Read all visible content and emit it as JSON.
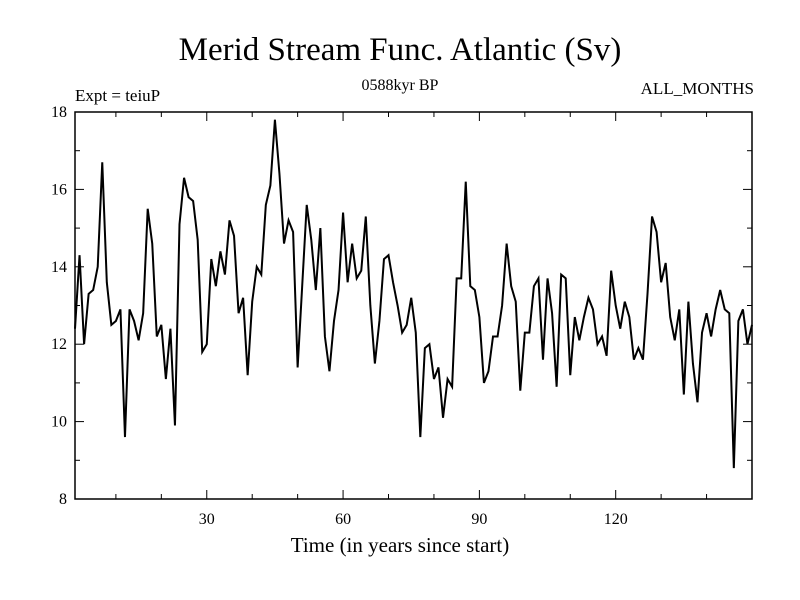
{
  "chart_data": {
    "type": "line",
    "title": "Merid Stream Func. Atlantic (Sv)",
    "subtitle": "0588kyr BP",
    "experiment_label": "Expt = teiuP",
    "period_label": "ALL_MONTHS",
    "xlabel": "Time (in years since start)",
    "ylabel": "",
    "xlim": [
      1,
      150
    ],
    "ylim": [
      8,
      18
    ],
    "xticks": [
      30,
      60,
      90,
      120
    ],
    "yticks": [
      8,
      10,
      12,
      14,
      16,
      18
    ],
    "grid": false,
    "series": [
      {
        "name": "Merid Stream Func. Atlantic",
        "color": "#000000",
        "x": [
          1,
          2,
          3,
          4,
          5,
          6,
          7,
          8,
          9,
          10,
          11,
          12,
          13,
          14,
          15,
          16,
          17,
          18,
          19,
          20,
          21,
          22,
          23,
          24,
          25,
          26,
          27,
          28,
          29,
          30,
          31,
          32,
          33,
          34,
          35,
          36,
          37,
          38,
          39,
          40,
          41,
          42,
          43,
          44,
          45,
          46,
          47,
          48,
          49,
          50,
          51,
          52,
          53,
          54,
          55,
          56,
          57,
          58,
          59,
          60,
          61,
          62,
          63,
          64,
          65,
          66,
          67,
          68,
          69,
          70,
          71,
          72,
          73,
          74,
          75,
          76,
          77,
          78,
          79,
          80,
          81,
          82,
          83,
          84,
          85,
          86,
          87,
          88,
          89,
          90,
          91,
          92,
          93,
          94,
          95,
          96,
          97,
          98,
          99,
          100,
          101,
          102,
          103,
          104,
          105,
          106,
          107,
          108,
          109,
          110,
          111,
          112,
          113,
          114,
          115,
          116,
          117,
          118,
          119,
          120,
          121,
          122,
          123,
          124,
          125,
          126,
          127,
          128,
          129,
          130,
          131,
          132,
          133,
          134,
          135,
          136,
          137,
          138,
          139,
          140,
          141,
          142,
          143,
          144,
          145,
          146,
          147,
          148,
          149,
          150
        ],
        "values": [
          12.4,
          14.3,
          12.0,
          13.3,
          13.4,
          14.0,
          16.7,
          13.6,
          12.5,
          12.6,
          12.9,
          9.6,
          12.9,
          12.6,
          12.1,
          12.8,
          15.5,
          14.6,
          12.2,
          12.5,
          11.1,
          12.4,
          9.9,
          15.1,
          16.3,
          15.8,
          15.7,
          14.7,
          11.8,
          12.0,
          14.2,
          13.5,
          14.4,
          13.8,
          15.2,
          14.8,
          12.8,
          13.2,
          11.2,
          13.1,
          14.0,
          13.8,
          15.6,
          16.1,
          17.8,
          16.4,
          14.6,
          15.2,
          14.9,
          11.4,
          13.5,
          15.6,
          14.7,
          13.4,
          15.0,
          12.2,
          11.3,
          12.6,
          13.4,
          15.4,
          13.6,
          14.6,
          13.7,
          13.9,
          15.3,
          13.0,
          11.5,
          12.6,
          14.2,
          14.3,
          13.6,
          13.0,
          12.3,
          12.5,
          13.2,
          12.3,
          9.6,
          11.9,
          12.0,
          11.1,
          11.4,
          10.1,
          11.1,
          10.9,
          13.7,
          13.7,
          16.2,
          13.5,
          13.4,
          12.7,
          11.0,
          11.3,
          12.2,
          12.2,
          13.0,
          14.6,
          13.5,
          13.1,
          10.8,
          12.3,
          12.3,
          13.5,
          13.7,
          11.6,
          13.7,
          12.8,
          10.9,
          13.8,
          13.7,
          11.2,
          12.7,
          12.1,
          12.7,
          13.2,
          12.9,
          12.0,
          12.2,
          11.7,
          13.9,
          13.0,
          12.4,
          13.1,
          12.7,
          11.6,
          11.9,
          11.6,
          13.3,
          15.3,
          14.9,
          13.6,
          14.1,
          12.7,
          12.1,
          12.9,
          10.7,
          13.1,
          11.5,
          10.5,
          12.3,
          12.8,
          12.2,
          12.9,
          13.4,
          12.9,
          12.8,
          8.8,
          12.6,
          12.9,
          12.0,
          12.5
        ]
      }
    ]
  }
}
